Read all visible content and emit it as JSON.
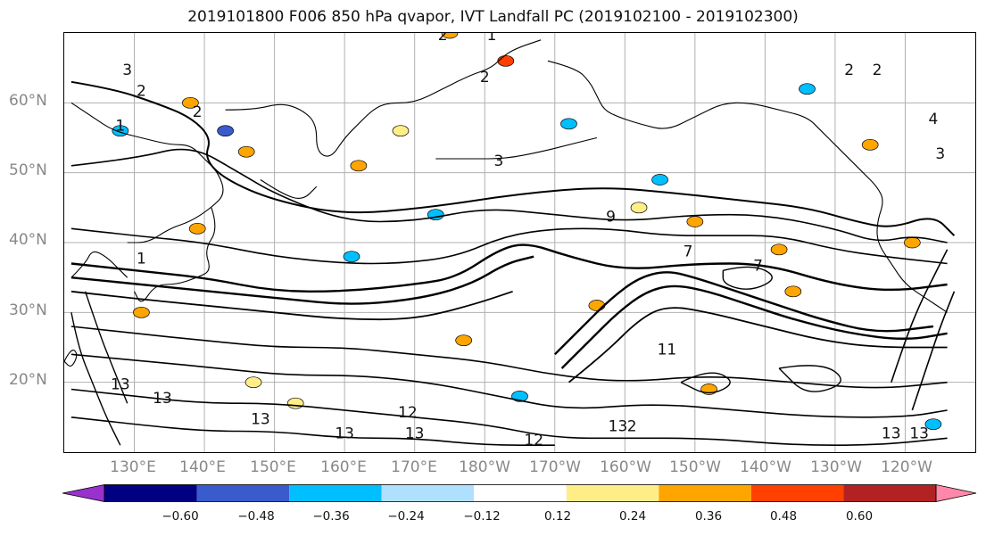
{
  "title": "2019101800 F006 850 hPa qvapor, IVT Landfall PC (2019102100 - 2019102300)",
  "lat_labels": [
    "60°N",
    "50°N",
    "40°N",
    "30°N",
    "20°N"
  ],
  "lon_labels": [
    "130°E",
    "140°E",
    "150°E",
    "160°E",
    "170°E",
    "180°W",
    "170°W",
    "160°W",
    "150°W",
    "140°W",
    "130°W",
    "120°W"
  ],
  "colorbar": {
    "colors": [
      "#9932cc",
      "#000080",
      "#3a5bcc",
      "#00bfff",
      "#b0e0ff",
      "#ffffff",
      "#ffee88",
      "#ffa500",
      "#ff4000",
      "#b22222",
      "#ff88aa"
    ],
    "ticks": [
      "−0.60",
      "−0.48",
      "−0.36",
      "−0.24",
      "−0.12",
      "0.12",
      "0.24",
      "0.36",
      "0.48",
      "0.60"
    ]
  },
  "contour_labels": [
    {
      "text": "3",
      "lon": 129,
      "lat": 64
    },
    {
      "text": "2",
      "lon": 131,
      "lat": 61
    },
    {
      "text": "1",
      "lon": 128,
      "lat": 56
    },
    {
      "text": "2",
      "lon": 139,
      "lat": 58
    },
    {
      "text": "3",
      "lon": 182,
      "lat": 51
    },
    {
      "text": "2",
      "lon": 174,
      "lat": 69
    },
    {
      "text": "1",
      "lon": 181,
      "lat": 69
    },
    {
      "text": "2",
      "lon": 180,
      "lat": 63
    },
    {
      "text": "2",
      "lon": 232,
      "lat": 64
    },
    {
      "text": "2",
      "lon": 236,
      "lat": 64
    },
    {
      "text": "4",
      "lon": 244,
      "lat": 57
    },
    {
      "text": "3",
      "lon": 245,
      "lat": 52
    },
    {
      "text": "1",
      "lon": 131,
      "lat": 37
    },
    {
      "text": "9",
      "lon": 198,
      "lat": 43
    },
    {
      "text": "7",
      "lon": 209,
      "lat": 38
    },
    {
      "text": "7",
      "lon": 219,
      "lat": 36
    },
    {
      "text": "11",
      "lon": 206,
      "lat": 24
    },
    {
      "text": "13",
      "lon": 128,
      "lat": 19
    },
    {
      "text": "13",
      "lon": 134,
      "lat": 17
    },
    {
      "text": "13",
      "lon": 148,
      "lat": 14
    },
    {
      "text": "13",
      "lon": 160,
      "lat": 12
    },
    {
      "text": "12",
      "lon": 169,
      "lat": 15
    },
    {
      "text": "13",
      "lon": 170,
      "lat": 12
    },
    {
      "text": "12",
      "lon": 187,
      "lat": 11
    },
    {
      "text": "13",
      "lon": 199,
      "lat": 13
    },
    {
      "text": "2",
      "lon": 201,
      "lat": 13
    },
    {
      "text": "13",
      "lon": 238,
      "lat": 12
    },
    {
      "text": "13",
      "lon": 242,
      "lat": 12
    }
  ],
  "contours": [
    {
      "w": 2,
      "pts": [
        [
          121,
          63
        ],
        [
          127,
          62
        ],
        [
          133,
          60
        ],
        [
          138,
          58
        ],
        [
          141,
          55
        ],
        [
          140,
          52
        ],
        [
          143,
          49
        ],
        [
          150,
          46
        ],
        [
          160,
          44
        ],
        [
          172,
          45
        ],
        [
          185,
          47
        ],
        [
          197,
          48
        ],
        [
          208,
          47
        ],
        [
          217,
          46
        ],
        [
          226,
          45
        ],
        [
          233,
          43
        ],
        [
          238,
          42
        ],
        [
          244,
          44
        ],
        [
          247,
          41
        ]
      ]
    },
    {
      "w": 1.6,
      "pts": [
        [
          121,
          51
        ],
        [
          130,
          52
        ],
        [
          138,
          54
        ],
        [
          145,
          50
        ],
        [
          150,
          47
        ],
        [
          160,
          43
        ],
        [
          170,
          43
        ],
        [
          180,
          45
        ],
        [
          190,
          44
        ],
        [
          200,
          43
        ],
        [
          210,
          44
        ],
        [
          220,
          44
        ],
        [
          230,
          42
        ],
        [
          236,
          40
        ],
        [
          241,
          41
        ],
        [
          246,
          40
        ]
      ]
    },
    {
      "w": 1.6,
      "pts": [
        [
          121,
          42
        ],
        [
          130,
          41
        ],
        [
          140,
          40
        ],
        [
          150,
          38
        ],
        [
          160,
          37
        ],
        [
          168,
          37
        ],
        [
          176,
          38
        ],
        [
          183,
          41
        ],
        [
          190,
          42
        ],
        [
          198,
          42
        ],
        [
          206,
          41
        ],
        [
          214,
          41
        ],
        [
          222,
          41
        ],
        [
          230,
          39
        ],
        [
          237,
          38
        ],
        [
          246,
          37
        ]
      ]
    },
    {
      "w": 2.4,
      "pts": [
        [
          121,
          37
        ],
        [
          130,
          36
        ],
        [
          140,
          35
        ],
        [
          150,
          33
        ],
        [
          160,
          33
        ],
        [
          170,
          34
        ],
        [
          176,
          35
        ],
        [
          182,
          39
        ],
        [
          186,
          40
        ],
        [
          192,
          38
        ],
        [
          200,
          36
        ],
        [
          210,
          37
        ],
        [
          220,
          37
        ],
        [
          230,
          34
        ],
        [
          238,
          33
        ],
        [
          246,
          34
        ]
      ]
    },
    {
      "w": 2.4,
      "pts": [
        [
          121,
          35
        ],
        [
          131,
          34
        ],
        [
          141,
          33
        ],
        [
          151,
          32
        ],
        [
          161,
          31
        ],
        [
          171,
          32
        ],
        [
          178,
          34
        ],
        [
          183,
          37
        ],
        [
          187,
          38
        ]
      ]
    },
    {
      "w": 1.8,
      "pts": [
        [
          121,
          33
        ],
        [
          130,
          32
        ],
        [
          140,
          31
        ],
        [
          150,
          30
        ],
        [
          160,
          29
        ],
        [
          170,
          29
        ],
        [
          178,
          31
        ],
        [
          184,
          33
        ]
      ]
    },
    {
      "w": 2.4,
      "pts": [
        [
          190,
          24
        ],
        [
          194,
          28
        ],
        [
          198,
          32
        ],
        [
          202,
          35
        ],
        [
          206,
          36
        ],
        [
          210,
          35
        ],
        [
          216,
          33
        ],
        [
          222,
          31
        ],
        [
          228,
          29
        ],
        [
          236,
          27
        ],
        [
          244,
          28
        ]
      ]
    },
    {
      "w": 2.4,
      "pts": [
        [
          191,
          22
        ],
        [
          195,
          26
        ],
        [
          199,
          30
        ],
        [
          203,
          33
        ],
        [
          207,
          34
        ],
        [
          212,
          33
        ],
        [
          218,
          31
        ],
        [
          224,
          29
        ],
        [
          232,
          27
        ],
        [
          240,
          26
        ],
        [
          246,
          27
        ]
      ]
    },
    {
      "w": 1.8,
      "pts": [
        [
          192,
          20
        ],
        [
          197,
          24
        ],
        [
          202,
          29
        ],
        [
          206,
          31
        ],
        [
          212,
          30
        ],
        [
          220,
          28
        ],
        [
          228,
          26
        ],
        [
          236,
          25
        ],
        [
          246,
          25
        ]
      ]
    },
    {
      "w": 1.6,
      "pts": [
        [
          121,
          28
        ],
        [
          130,
          27
        ],
        [
          140,
          26
        ],
        [
          150,
          25
        ],
        [
          160,
          25
        ],
        [
          170,
          24
        ],
        [
          180,
          23
        ],
        [
          190,
          21
        ],
        [
          200,
          20
        ],
        [
          212,
          21
        ],
        [
          224,
          20
        ],
        [
          236,
          19
        ],
        [
          246,
          20
        ]
      ]
    },
    {
      "w": 1.6,
      "pts": [
        [
          121,
          24
        ],
        [
          132,
          23
        ],
        [
          142,
          22
        ],
        [
          152,
          21
        ],
        [
          162,
          21
        ],
        [
          172,
          20
        ],
        [
          182,
          18
        ],
        [
          192,
          16
        ],
        [
          204,
          17
        ],
        [
          216,
          16
        ],
        [
          228,
          15
        ],
        [
          240,
          15
        ],
        [
          246,
          16
        ]
      ]
    },
    {
      "w": 1.6,
      "pts": [
        [
          121,
          19
        ],
        [
          130,
          18
        ],
        [
          140,
          17
        ],
        [
          150,
          17
        ],
        [
          160,
          16
        ],
        [
          170,
          15
        ],
        [
          180,
          14
        ],
        [
          190,
          12
        ],
        [
          200,
          12
        ],
        [
          212,
          12
        ],
        [
          224,
          11
        ],
        [
          236,
          11
        ],
        [
          246,
          12
        ]
      ]
    },
    {
      "w": 1.6,
      "pts": [
        [
          121,
          15
        ],
        [
          130,
          14
        ],
        [
          140,
          13
        ],
        [
          150,
          13
        ],
        [
          160,
          12
        ],
        [
          170,
          12
        ],
        [
          180,
          11
        ],
        [
          190,
          11
        ]
      ]
    },
    {
      "w": 1.6,
      "pts": [
        [
          241,
          16
        ],
        [
          243,
          22
        ],
        [
          245,
          28
        ],
        [
          247,
          33
        ]
      ]
    },
    {
      "w": 1.6,
      "pts": [
        [
          238,
          20
        ],
        [
          240,
          26
        ],
        [
          242,
          31
        ],
        [
          244,
          35
        ],
        [
          246,
          39
        ]
      ]
    },
    {
      "w": 1.4,
      "pts": [
        [
          121,
          30
        ],
        [
          122,
          25
        ],
        [
          124,
          20
        ],
        [
          126,
          15
        ],
        [
          128,
          11
        ]
      ]
    },
    {
      "w": 1.4,
      "pts": [
        [
          123,
          33
        ],
        [
          125,
          27
        ],
        [
          127,
          22
        ],
        [
          129,
          17
        ]
      ]
    },
    {
      "w": 1.4,
      "pts": [
        [
          214,
          36
        ],
        [
          218,
          37
        ],
        [
          222,
          35
        ],
        [
          218,
          33
        ],
        [
          214,
          34
        ],
        [
          214,
          36
        ]
      ]
    },
    {
      "w": 1.4,
      "pts": [
        [
          208,
          20
        ],
        [
          212,
          22
        ],
        [
          216,
          20
        ],
        [
          212,
          18
        ],
        [
          208,
          20
        ]
      ]
    },
    {
      "w": 1.4,
      "pts": [
        [
          222,
          22
        ],
        [
          228,
          23
        ],
        [
          232,
          20
        ],
        [
          226,
          18
        ],
        [
          222,
          22
        ]
      ]
    }
  ],
  "coastlines": [
    {
      "pts": [
        [
          121,
          60
        ],
        [
          124,
          58
        ],
        [
          127,
          56
        ],
        [
          131,
          55
        ],
        [
          135,
          54
        ],
        [
          138,
          54
        ],
        [
          140,
          52
        ],
        [
          142,
          50
        ],
        [
          143,
          47
        ],
        [
          141,
          45
        ],
        [
          138,
          43
        ],
        [
          135,
          42
        ],
        [
          132,
          40
        ],
        [
          129,
          40
        ]
      ]
    },
    {
      "pts": [
        [
          143,
          59
        ],
        [
          147,
          59
        ],
        [
          151,
          60
        ],
        [
          154,
          59
        ],
        [
          156,
          57
        ],
        [
          156,
          53
        ],
        [
          158,
          52
        ],
        [
          160,
          55
        ],
        [
          162,
          57
        ],
        [
          164,
          59
        ],
        [
          166,
          60
        ],
        [
          170,
          60
        ],
        [
          174,
          62
        ],
        [
          178,
          64
        ],
        [
          181,
          65
        ],
        [
          183,
          67
        ],
        [
          185,
          68
        ],
        [
          188,
          69
        ]
      ]
    },
    {
      "pts": [
        [
          189,
          66
        ],
        [
          193,
          65
        ],
        [
          195,
          63
        ],
        [
          196,
          61
        ],
        [
          197,
          59
        ],
        [
          199,
          58
        ],
        [
          202,
          57
        ],
        [
          206,
          56
        ],
        [
          210,
          58
        ],
        [
          214,
          60
        ],
        [
          218,
          60
        ],
        [
          222,
          59
        ],
        [
          226,
          58
        ],
        [
          228,
          56
        ],
        [
          230,
          54
        ],
        [
          232,
          52
        ],
        [
          234,
          50
        ],
        [
          236,
          48
        ],
        [
          237,
          46
        ],
        [
          236,
          43
        ],
        [
          236,
          40
        ],
        [
          238,
          37
        ],
        [
          240,
          34
        ],
        [
          243,
          32
        ],
        [
          246,
          30
        ]
      ]
    },
    {
      "pts": [
        [
          141,
          45
        ],
        [
          142,
          42
        ],
        [
          140,
          39
        ],
        [
          141,
          36
        ],
        [
          139,
          35
        ],
        [
          136,
          34
        ],
        [
          133,
          34
        ],
        [
          131,
          31
        ],
        [
          130,
          33
        ]
      ]
    },
    {
      "pts": [
        [
          121,
          35
        ],
        [
          123,
          37
        ],
        [
          124,
          39
        ],
        [
          126,
          38
        ],
        [
          128,
          36
        ],
        [
          129,
          35
        ]
      ]
    },
    {
      "pts": [
        [
          120,
          23
        ],
        [
          121,
          25
        ],
        [
          122,
          24
        ],
        [
          121,
          22
        ],
        [
          120,
          23
        ]
      ]
    },
    {
      "pts": [
        [
          148,
          49
        ],
        [
          151,
          47
        ],
        [
          154,
          46
        ],
        [
          156,
          48
        ]
      ]
    },
    {
      "pts": [
        [
          173,
          52
        ],
        [
          178,
          52
        ],
        [
          183,
          52
        ],
        [
          188,
          53
        ],
        [
          192,
          54
        ],
        [
          196,
          55
        ]
      ]
    }
  ],
  "shading": [
    {
      "lon": 138,
      "lat": 60,
      "c": "#ffa500"
    },
    {
      "lon": 143,
      "lat": 56,
      "c": "#3a5bcc"
    },
    {
      "lon": 146,
      "lat": 53,
      "c": "#ffa500"
    },
    {
      "lon": 175,
      "lat": 70,
      "c": "#ffa500"
    },
    {
      "lon": 183,
      "lat": 66,
      "c": "#ff4000"
    },
    {
      "lon": 192,
      "lat": 57,
      "c": "#00bfff"
    },
    {
      "lon": 205,
      "lat": 49,
      "c": "#00bfff"
    },
    {
      "lon": 226,
      "lat": 62,
      "c": "#00bfff"
    },
    {
      "lon": 161,
      "lat": 38,
      "c": "#00bfff"
    },
    {
      "lon": 139,
      "lat": 42,
      "c": "#ffa500"
    },
    {
      "lon": 222,
      "lat": 39,
      "c": "#ffa500"
    },
    {
      "lon": 241,
      "lat": 40,
      "c": "#ffa500"
    },
    {
      "lon": 162,
      "lat": 51,
      "c": "#ffa500"
    },
    {
      "lon": 168,
      "lat": 56,
      "c": "#ffee88"
    },
    {
      "lon": 210,
      "lat": 43,
      "c": "#ffa500"
    },
    {
      "lon": 196,
      "lat": 31,
      "c": "#ffa500"
    },
    {
      "lon": 177,
      "lat": 26,
      "c": "#ffa500"
    },
    {
      "lon": 212,
      "lat": 19,
      "c": "#ffa500"
    },
    {
      "lon": 224,
      "lat": 33,
      "c": "#ffa500"
    },
    {
      "lon": 244,
      "lat": 14,
      "c": "#00bfff"
    },
    {
      "lon": 147,
      "lat": 20,
      "c": "#ffee88"
    },
    {
      "lon": 131,
      "lat": 30,
      "c": "#ffa500"
    },
    {
      "lon": 173,
      "lat": 44,
      "c": "#00bfff"
    },
    {
      "lon": 128,
      "lat": 56,
      "c": "#00bfff"
    },
    {
      "lon": 235,
      "lat": 54,
      "c": "#ffa500"
    },
    {
      "lon": 202,
      "lat": 45,
      "c": "#ffee88"
    },
    {
      "lon": 185,
      "lat": 18,
      "c": "#00bfff"
    },
    {
      "lon": 153,
      "lat": 17,
      "c": "#ffee88"
    }
  ]
}
